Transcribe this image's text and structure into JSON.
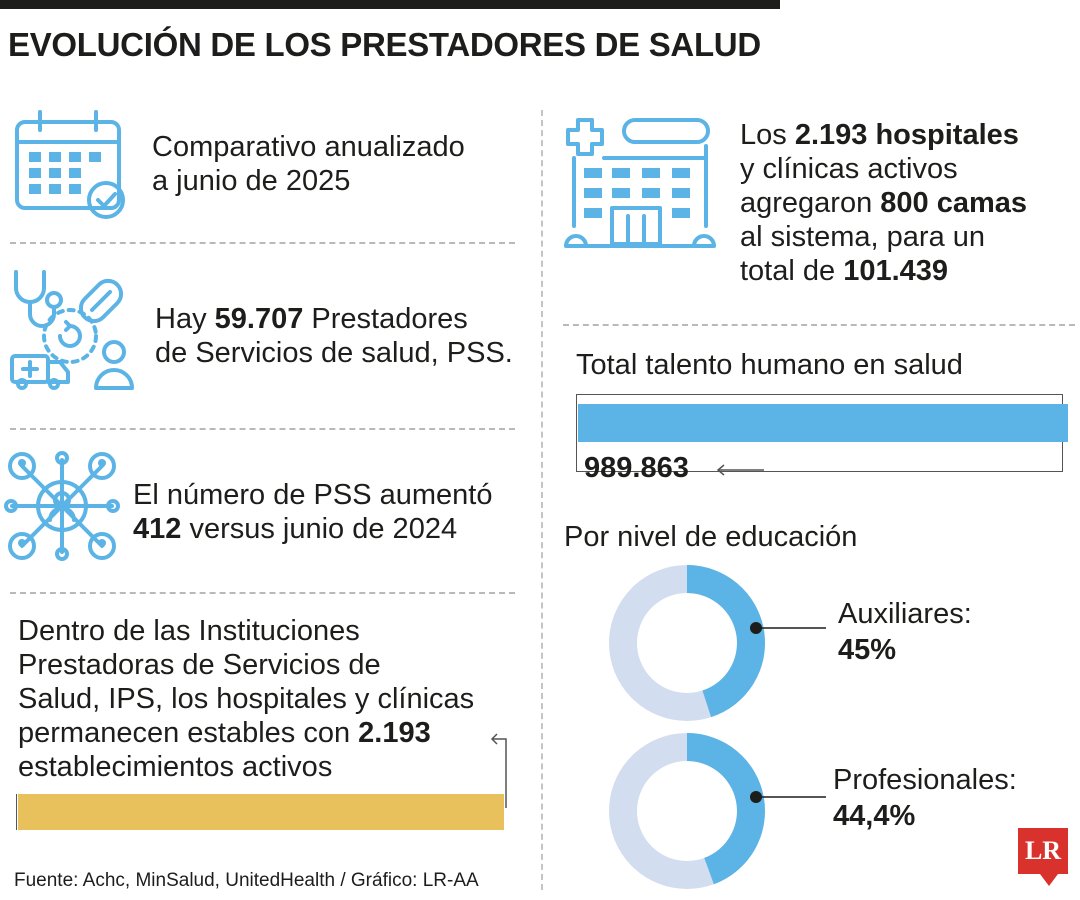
{
  "title": "EVOLUCIÓN DE LOS PRESTADORES DE SALUD",
  "left": {
    "block1": {
      "line1": "Comparativo anualizado",
      "line2": "a junio de 2025"
    },
    "block2": {
      "pre": "Hay ",
      "num": "59.707",
      "post": " Prestadores",
      "line2": "de Servicios de salud, PSS."
    },
    "block3": {
      "line1": "El número de PSS aumentó",
      "num": "412",
      "post": " versus junio de 2024"
    },
    "block4": {
      "line1": "Dentro de las Instituciones",
      "line2": "Prestadoras de Servicios de",
      "line3": "Salud, IPS, los hospitales y clínicas",
      "line4_pre": "permanecen estables con ",
      "line4_num": "2.193",
      "line5": "establecimientos activos"
    }
  },
  "right": {
    "hospitals": {
      "l1_pre": "Los ",
      "l1_bold": "2.193 hospitales",
      "l2": "y clínicas activos",
      "l3_pre": "agregaron ",
      "l3_bold": "800 camas",
      "l4": "al sistema, para un",
      "l5_pre": "total de ",
      "l5_bold": "101.439"
    },
    "talent": {
      "label": "Total talento humano en salud",
      "value": "989.863"
    },
    "education": {
      "label": "Por nivel de educación",
      "items": [
        {
          "name": "Auxiliares:",
          "value": "45%"
        },
        {
          "name": "Profesionales:",
          "value": "44,4%"
        }
      ]
    }
  },
  "source": "Fuente: Achc, MinSalud, UnitedHealth / Gráfico: LR-AA",
  "logo": "LR",
  "colors": {
    "accent_blue": "#5bb4e5",
    "ring_light": "#d3ddf0",
    "gold_bar": "#e8c15c",
    "logo_red": "#d9322c"
  },
  "icons": [
    "calendar-check-icon",
    "health-services-icon",
    "network-people-icon",
    "hospital-icon"
  ],
  "chart_data": [
    {
      "type": "pie",
      "title": "Auxiliares:",
      "values": [
        45,
        55
      ],
      "labels": [
        "Auxiliares",
        ""
      ]
    },
    {
      "type": "pie",
      "title": "Profesionales:",
      "values": [
        44.4,
        55.6
      ],
      "labels": [
        "Profesionales",
        ""
      ]
    },
    {
      "type": "bar",
      "title": "Total talento humano en salud",
      "values": [
        989863
      ]
    }
  ]
}
